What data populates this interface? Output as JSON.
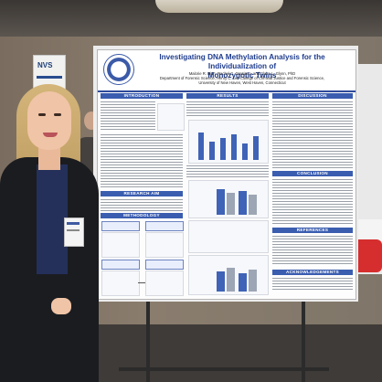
{
  "background": {
    "left_banner_text": "NVS"
  },
  "poster": {
    "title_line1": "Investigating DNA Methylation Analysis for the Individualization of",
    "title_line2": "Monozygotic Twins",
    "authors": "Malorie R. Bitz*, Rachel C. Graziano, and Claire L. Glynn, PhD",
    "affiliation1": "Department of Forensic Science, Henry C. Lee College of Criminal Justice and Forensic Science,",
    "affiliation2": "University of New Haven, West Haven, Connecticut",
    "sections": {
      "introduction": "INTRODUCTION",
      "results": "RESULTS",
      "discussion": "DISCUSSION",
      "research_aim": "RESEARCH AIM",
      "methodology": "METHODOLOGY",
      "conclusion": "CONCLUSION",
      "references": "REFERENCES",
      "acknowledgements": "ACKNOWLEDGEMENTS"
    }
  },
  "colors": {
    "accent": "#3a5db0",
    "title": "#1f3d8f"
  }
}
